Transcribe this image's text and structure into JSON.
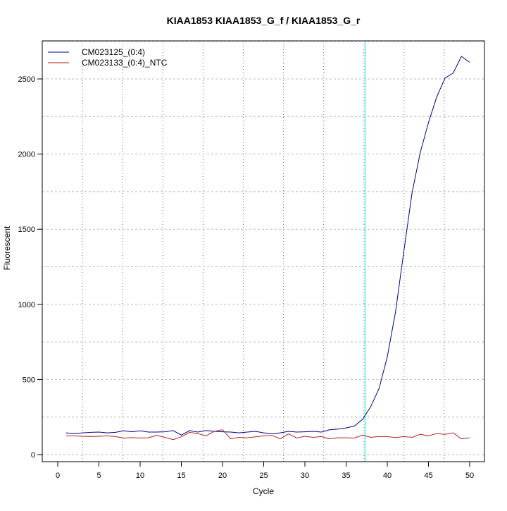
{
  "chart_data": {
    "type": "line",
    "title": "KIAA1853  KIAA1853_G_f / KIAA1853_G_r",
    "xlabel": "Cycle",
    "ylabel": "Fluorescent",
    "xlim": [
      -2,
      52
    ],
    "ylim": [
      -50,
      2750
    ],
    "xticks": [
      0,
      5,
      10,
      15,
      20,
      25,
      30,
      35,
      40,
      45,
      50
    ],
    "yticks": [
      0,
      500,
      1000,
      1500,
      2000,
      2500
    ],
    "grid": true,
    "legend_position": "top-left",
    "threshold_cycle": 37.3,
    "threshold_color": "#00e5ee",
    "x": [
      1,
      2,
      3,
      4,
      5,
      6,
      7,
      8,
      9,
      10,
      11,
      12,
      13,
      14,
      15,
      16,
      17,
      18,
      19,
      20,
      21,
      22,
      23,
      24,
      25,
      26,
      27,
      28,
      29,
      30,
      31,
      32,
      33,
      34,
      35,
      36,
      37,
      38,
      39,
      40,
      41,
      42,
      43,
      44,
      45,
      46,
      47,
      48,
      49,
      50
    ],
    "series": [
      {
        "name": "CM023125_(0:4)",
        "color": "#00008b",
        "values": [
          145,
          140,
          145,
          148,
          150,
          145,
          148,
          158,
          152,
          158,
          150,
          150,
          152,
          160,
          130,
          160,
          150,
          160,
          155,
          152,
          150,
          145,
          150,
          155,
          145,
          138,
          145,
          155,
          150,
          152,
          155,
          150,
          165,
          170,
          178,
          190,
          235,
          320,
          440,
          650,
          950,
          1350,
          1740,
          2010,
          2210,
          2380,
          2505,
          2540,
          2650,
          2610
        ]
      },
      {
        "name": "CM023133_(0:4)_NTC",
        "color": "#b22222",
        "values": [
          125,
          125,
          122,
          120,
          122,
          125,
          120,
          110,
          113,
          110,
          112,
          128,
          115,
          100,
          118,
          148,
          140,
          125,
          155,
          165,
          105,
          115,
          112,
          118,
          125,
          128,
          105,
          138,
          110,
          122,
          115,
          120,
          105,
          112,
          112,
          110,
          130,
          115,
          120,
          120,
          113,
          120,
          115,
          135,
          125,
          140,
          135,
          145,
          105,
          112
        ]
      }
    ]
  }
}
